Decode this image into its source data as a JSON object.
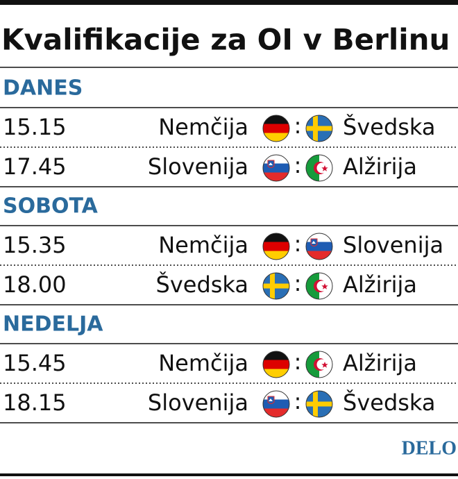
{
  "title": "Kvalifikacije za OI v Berlinu",
  "separator": ":",
  "days": [
    {
      "name": "DANES",
      "matches": [
        {
          "time": "15.15",
          "home": "Nemčija",
          "away": "Švedska"
        },
        {
          "time": "17.45",
          "home": "Slovenija",
          "away": "Alžirija"
        }
      ]
    },
    {
      "name": "SOBOTA",
      "matches": [
        {
          "time": "15.35",
          "home": "Nemčija",
          "away": "Slovenija"
        },
        {
          "time": "18.00",
          "home": "Švedska",
          "away": "Alžirija"
        }
      ]
    },
    {
      "name": "NEDELJA",
      "matches": [
        {
          "time": "15.45",
          "home": "Nemčija",
          "away": "Alžirija"
        },
        {
          "time": "18.15",
          "home": "Slovenija",
          "away": "Švedska"
        }
      ]
    }
  ],
  "logo": "DELO"
}
